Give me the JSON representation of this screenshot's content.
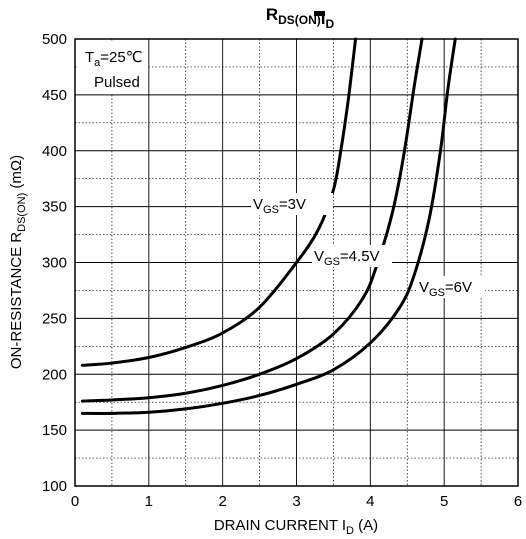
{
  "chart_data": {
    "type": "line",
    "title": "R_DS(ON) – I_D",
    "title_parts": {
      "main": "R",
      "main_sub": "DS(ON)",
      "dash": "",
      "tail": "I",
      "tail_sub": "D"
    },
    "xlabel": "DRAIN CURRENT I_D (A)",
    "xlabel_parts": {
      "pre": "DRAIN CURRENT I",
      "sub": "D",
      "post": " (A)"
    },
    "ylabel": "ON-RESISTANCE R_DS(ON) (mΩ)",
    "ylabel_parts": {
      "pre": "ON-RESISTANCE R",
      "sub": "DS(ON)",
      "post": " (mΩ)"
    },
    "xlim": [
      0,
      6
    ],
    "ylim": [
      100,
      500
    ],
    "x_ticks": [
      "0",
      "1",
      "2",
      "3",
      "4",
      "5",
      "6"
    ],
    "y_ticks": [
      "100",
      "150",
      "200",
      "250",
      "300",
      "350",
      "400",
      "450",
      "500"
    ],
    "grid": true,
    "annotations": {
      "ta_pre": "T",
      "ta_sub": "a",
      "ta_post": "=25℃",
      "pulsed": "Pulsed"
    },
    "series": [
      {
        "name": "VGS=3V",
        "label_parts": {
          "pre": "V",
          "sub": "GS",
          "post": "=3V"
        },
        "x": [
          0.1,
          0.5,
          1.0,
          1.5,
          2.0,
          2.5,
          3.0,
          3.3,
          3.5,
          3.6,
          3.7,
          3.8
        ],
        "y": [
          208,
          210,
          215,
          224,
          237,
          260,
          300,
          330,
          365,
          400,
          445,
          500
        ]
      },
      {
        "name": "VGS=4.5V",
        "label_parts": {
          "pre": "V",
          "sub": "GS",
          "post": "=4.5V"
        },
        "x": [
          0.1,
          0.5,
          1.0,
          1.5,
          2.0,
          2.5,
          3.0,
          3.5,
          3.9,
          4.1,
          4.3,
          4.45,
          4.6,
          4.7
        ],
        "y": [
          176,
          177,
          179,
          183,
          190,
          200,
          214,
          236,
          268,
          300,
          345,
          395,
          460,
          500
        ]
      },
      {
        "name": "VGS=6V",
        "label_parts": {
          "pre": "V",
          "sub": "GS",
          "post": "=6V"
        },
        "x": [
          0.1,
          0.5,
          1.0,
          1.5,
          2.0,
          2.5,
          3.0,
          3.5,
          4.0,
          4.4,
          4.6,
          4.8,
          4.95,
          5.05,
          5.15
        ],
        "y": [
          165,
          165,
          166,
          169,
          174,
          181,
          191,
          204,
          228,
          260,
          290,
          340,
          400,
          455,
          500
        ]
      }
    ]
  }
}
